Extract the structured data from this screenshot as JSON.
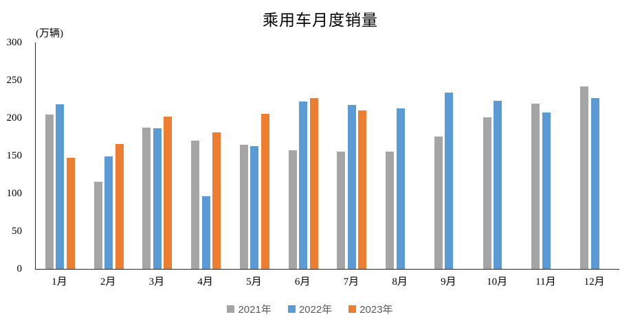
{
  "title": "乘用车月度销量",
  "unit_label": "(万辆)",
  "colors": {
    "series_2021": "#A5A5A5",
    "series_2022": "#5B9BD5",
    "series_2023": "#ED7D31",
    "axis_line": "#262626",
    "tick_text": "#000000",
    "legend_text": "#595959",
    "background": "#FFFFFF"
  },
  "chart_data": {
    "type": "bar",
    "title": "乘用车月度销量",
    "ylabel": "(万辆)",
    "xlabel": "",
    "ylim": [
      0,
      300
    ],
    "yticks": [
      0,
      50,
      100,
      150,
      200,
      250,
      300
    ],
    "grid": false,
    "legend_position": "bottom",
    "categories": [
      "1月",
      "2月",
      "3月",
      "4月",
      "5月",
      "6月",
      "7月",
      "8月",
      "9月",
      "10月",
      "11月",
      "12月"
    ],
    "series": [
      {
        "name": "2021年",
        "color": "#A5A5A5",
        "values": [
          204.5,
          115.6,
          187.4,
          170.4,
          164.6,
          156.9,
          155.1,
          155.2,
          175.1,
          200.7,
          219.2,
          242.2
        ]
      },
      {
        "name": "2022年",
        "color": "#5B9BD5",
        "values": [
          218.6,
          148.7,
          186.4,
          96.5,
          162.3,
          222.2,
          217.4,
          212.5,
          233.2,
          223.1,
          207.5,
          226.3
        ]
      },
      {
        "name": "2023年",
        "color": "#ED7D31",
        "values": [
          146.9,
          165.3,
          201.7,
          181.1,
          205.1,
          226.8,
          210.0,
          null,
          null,
          null,
          null,
          null
        ]
      }
    ]
  }
}
